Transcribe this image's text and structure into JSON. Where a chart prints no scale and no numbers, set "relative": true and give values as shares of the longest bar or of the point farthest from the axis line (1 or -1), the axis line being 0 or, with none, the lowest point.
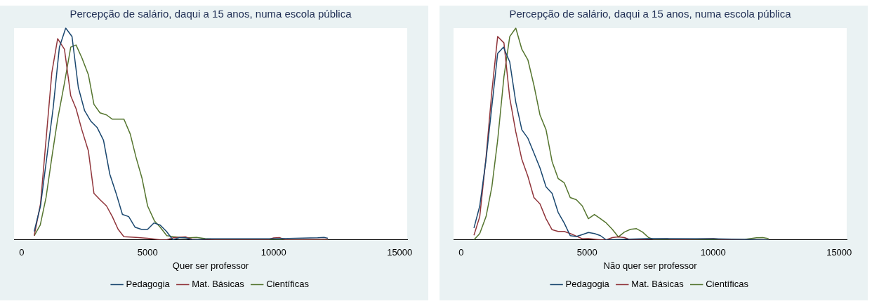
{
  "chart_data": [
    {
      "type": "line",
      "title": "Percepção de salário, daqui a 15 anos, numa escola pública",
      "xlabel": "Quer ser professor",
      "relative": true,
      "xlim": [
        -300,
        15300
      ],
      "xticks": [
        0,
        5000,
        10000,
        15000
      ],
      "legend": "bottom",
      "series": [
        {
          "name": "Pedagogia",
          "color": "#1a476f",
          "x": [
            500,
            750,
            1250,
            1500,
            1750,
            2000,
            2250,
            2500,
            2750,
            3000,
            3250,
            3500,
            3750,
            4000,
            4250,
            4500,
            4750,
            5000,
            5250,
            5500,
            5750,
            6000,
            6250,
            6500,
            6750,
            7500,
            10000,
            11750,
            12000,
            12150
          ],
          "values": [
            0.04,
            0.16,
            0.62,
            0.91,
            1,
            0.96,
            0.72,
            0.61,
            0.56,
            0.53,
            0.47,
            0.31,
            0.22,
            0.12,
            0.11,
            0.06,
            0.05,
            0.05,
            0.08,
            0.07,
            0.04,
            0,
            0.01,
            0.01,
            0,
            0.005,
            0.005,
            0.01,
            0.012,
            0.008
          ]
        },
        {
          "name": "Mat. Básicas",
          "color": "#90353b",
          "x": [
            500,
            750,
            1200,
            1430,
            1700,
            1950,
            2160,
            2390,
            2650,
            2870,
            3110,
            3370,
            3600,
            3830,
            4060,
            4540,
            5000,
            5500,
            5750,
            6020,
            6500,
            6770,
            7000,
            9750,
            10000,
            10230,
            10460,
            12150
          ],
          "values": [
            0.02,
            0.17,
            0.79,
            0.95,
            0.9,
            0.68,
            0.62,
            0.52,
            0.42,
            0.22,
            0.19,
            0.16,
            0.11,
            0.05,
            0.015,
            0.012,
            0.008,
            0,
            0,
            0.01,
            0.014,
            0.003,
            0,
            0,
            0.009,
            0.011,
            0,
            0.003
          ]
        },
        {
          "name": "Científicas",
          "color": "#55752f",
          "x": [
            500,
            740,
            970,
            1200,
            1430,
            1700,
            1950,
            2160,
            2390,
            2650,
            2870,
            3110,
            3370,
            3600,
            3830,
            4060,
            4310,
            4540,
            4780,
            5000,
            5270,
            5500,
            5760,
            6020,
            6500,
            6940,
            7290,
            7870,
            12150
          ],
          "values": [
            0.02,
            0.07,
            0.2,
            0.39,
            0.57,
            0.74,
            0.91,
            0.92,
            0.86,
            0.78,
            0.64,
            0.6,
            0.59,
            0.57,
            0.57,
            0.57,
            0.5,
            0.39,
            0.29,
            0.16,
            0.09,
            0.06,
            0.02,
            0.015,
            0.009,
            0.012,
            0.006,
            0,
            0
          ]
        }
      ]
    },
    {
      "type": "line",
      "title": "Percepção de salário, daqui a 15 anos, numa escola pública",
      "xlabel": "Não quer ser professor",
      "relative": true,
      "xlim": [
        -300,
        15300
      ],
      "xticks": [
        0,
        5000,
        10000,
        15000
      ],
      "legend": "bottom",
      "series": [
        {
          "name": "Pedagogia",
          "color": "#1a476f",
          "x": [
            510,
            740,
            990,
            1450,
            1680,
            1930,
            2170,
            2410,
            2650,
            2890,
            3130,
            3370,
            3610,
            3850,
            4090,
            4330,
            4570,
            4810,
            5050,
            5290,
            5530,
            5760,
            7390,
            10010,
            12200
          ],
          "values": [
            0.056,
            0.16,
            0.38,
            0.88,
            0.91,
            0.84,
            0.65,
            0.52,
            0.48,
            0.41,
            0.34,
            0.25,
            0.22,
            0.13,
            0.08,
            0.02,
            0.016,
            0.025,
            0.035,
            0.03,
            0.02,
            0,
            0.006,
            0.005,
            0
          ]
        },
        {
          "name": "Mat. Básicas",
          "color": "#90353b",
          "x": [
            510,
            740,
            990,
            1220,
            1450,
            1700,
            1930,
            2170,
            2410,
            2650,
            2890,
            3130,
            3370,
            3610,
            3850,
            4090,
            4330,
            4570,
            4810,
            5050,
            5530,
            5760,
            6000,
            6240,
            6480,
            6720,
            8180,
            8400,
            10010,
            10470,
            12200
          ],
          "values": [
            0.022,
            0.11,
            0.39,
            0.7,
            0.96,
            0.93,
            0.67,
            0.51,
            0.38,
            0.3,
            0.2,
            0.17,
            0.1,
            0.048,
            0.04,
            0.04,
            0.03,
            0.018,
            0.005,
            0.006,
            0,
            0,
            0.011,
            0.014,
            0.011,
            0,
            0.005,
            0,
            0.006,
            0,
            0
          ]
        },
        {
          "name": "Científicas",
          "color": "#55752f",
          "x": [
            510,
            740,
            990,
            1220,
            1450,
            1700,
            1930,
            2170,
            2410,
            2650,
            2890,
            3130,
            3370,
            3610,
            3850,
            4090,
            4330,
            4570,
            4810,
            5050,
            5290,
            5530,
            5760,
            6000,
            6240,
            6480,
            6720,
            6960,
            7200,
            7440,
            7680,
            11270,
            11720,
            11970,
            12200
          ],
          "values": [
            0,
            0.03,
            0.11,
            0.25,
            0.47,
            0.77,
            0.96,
            1,
            0.9,
            0.85,
            0.73,
            0.59,
            0.52,
            0.37,
            0.29,
            0.27,
            0.2,
            0.19,
            0.16,
            0.1,
            0.12,
            0.1,
            0.08,
            0.05,
            0.014,
            0.037,
            0.05,
            0.053,
            0.037,
            0.011,
            0,
            0.003,
            0.01,
            0.011,
            0.006
          ]
        }
      ]
    }
  ]
}
